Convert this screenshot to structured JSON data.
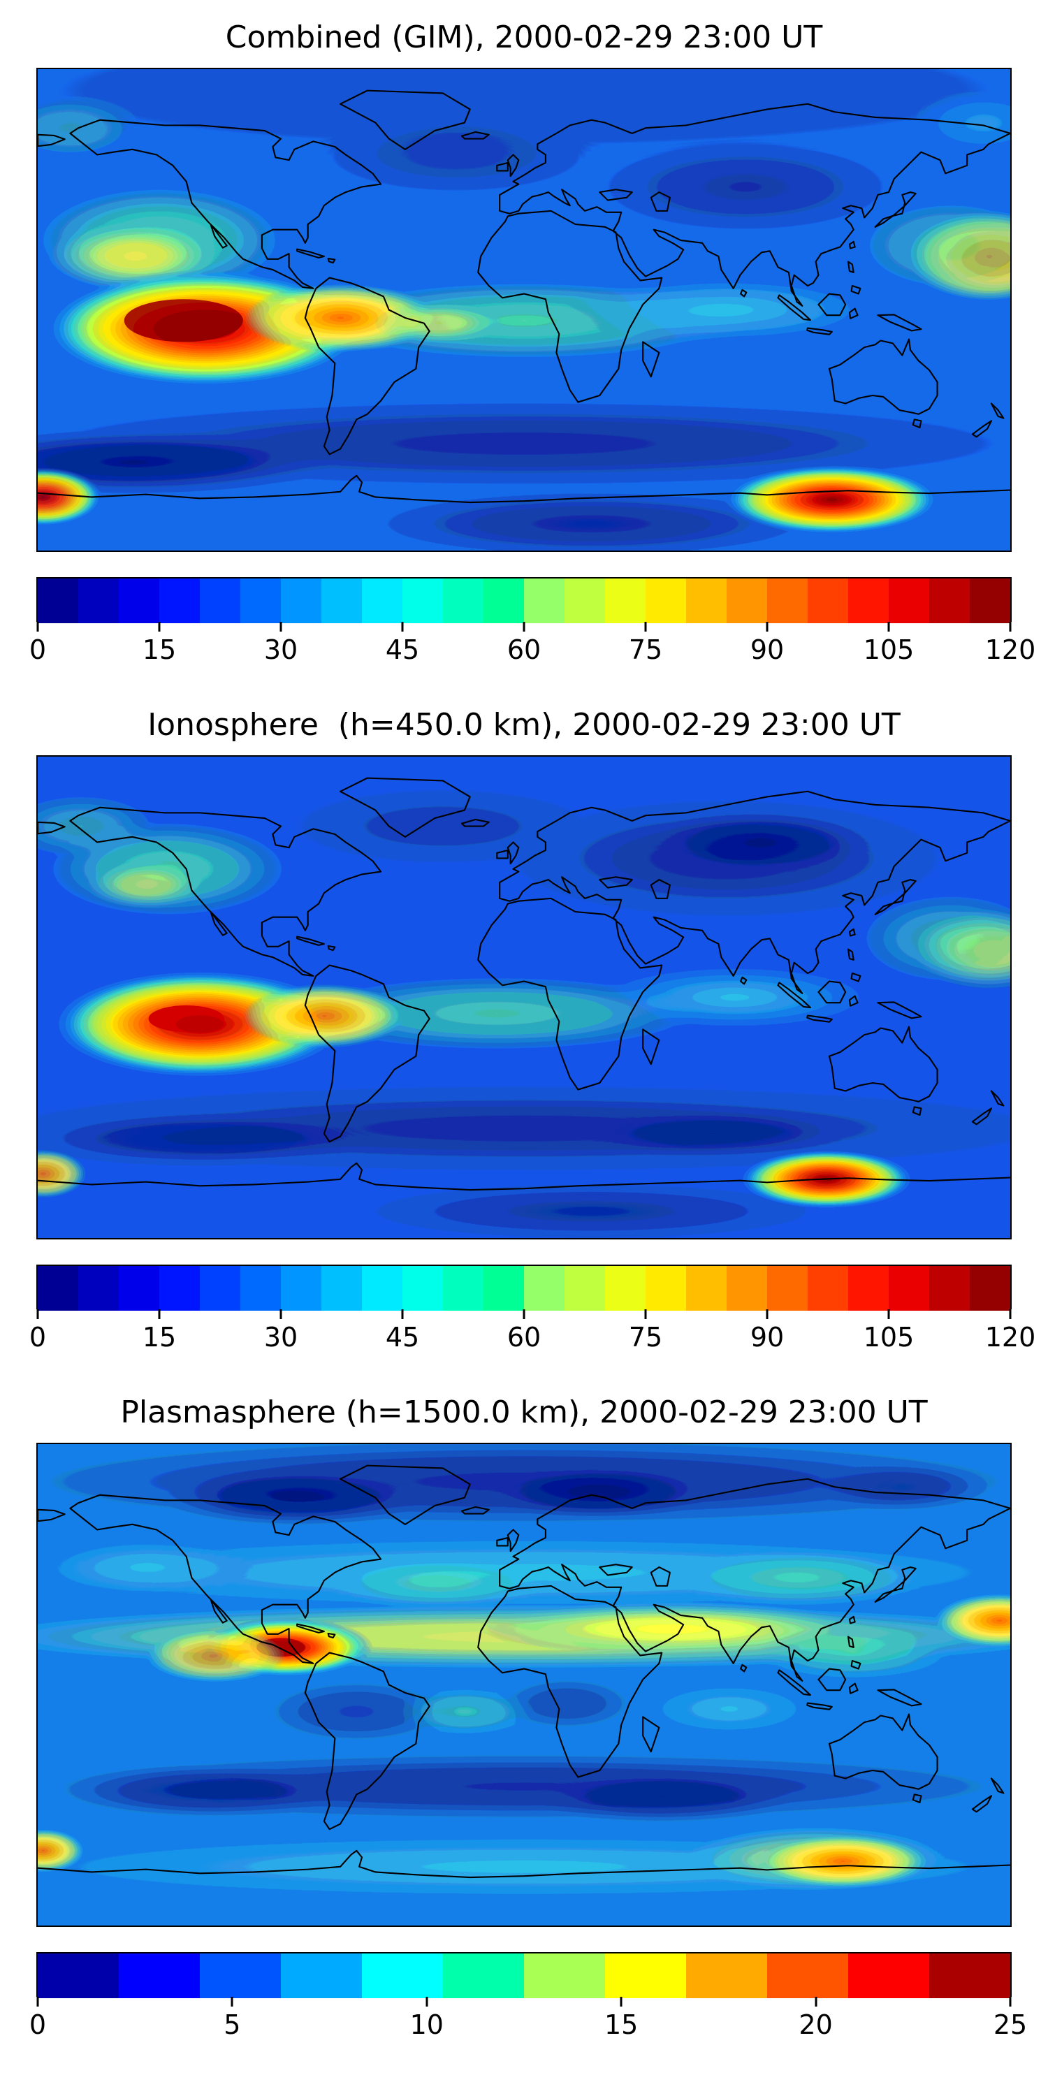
{
  "page": {
    "background": "#ffffff"
  },
  "panels": [
    {
      "id": "combined",
      "title": "Combined (GIM), 2000-02-29 23:00 UT",
      "colorbar": {
        "min": 0,
        "max": 120,
        "ticks": [
          0,
          15,
          30,
          45,
          60,
          75,
          90,
          105,
          120
        ],
        "segments": [
          "#000095",
          "#0000bf",
          "#0000ea",
          "#0015ff",
          "#0040ff",
          "#006aff",
          "#0095ff",
          "#00bfff",
          "#00eaff",
          "#00ffea",
          "#00ffbf",
          "#00ff95",
          "#95ff6a",
          "#bfff40",
          "#eaff15",
          "#ffea00",
          "#ffbf00",
          "#ff9500",
          "#ff6a00",
          "#ff4000",
          "#ff1500",
          "#ea0000",
          "#bf0000",
          "#950000"
        ]
      }
    },
    {
      "id": "ionosphere",
      "title": "Ionosphere  (h=450.0 km), 2000-02-29 23:00 UT",
      "colorbar": {
        "min": 0,
        "max": 120,
        "ticks": [
          0,
          15,
          30,
          45,
          60,
          75,
          90,
          105,
          120
        ],
        "segments": [
          "#000095",
          "#0000bf",
          "#0000ea",
          "#0015ff",
          "#0040ff",
          "#006aff",
          "#0095ff",
          "#00bfff",
          "#00eaff",
          "#00ffea",
          "#00ffbf",
          "#00ff95",
          "#95ff6a",
          "#bfff40",
          "#eaff15",
          "#ffea00",
          "#ffbf00",
          "#ff9500",
          "#ff6a00",
          "#ff4000",
          "#ff1500",
          "#ea0000",
          "#bf0000",
          "#950000"
        ]
      }
    },
    {
      "id": "plasmasphere",
      "title": "Plasmasphere (h=1500.0 km), 2000-02-29 23:00 UT",
      "colorbar": {
        "min": 0,
        "max": 25,
        "ticks": [
          0,
          5,
          10,
          15,
          20,
          25
        ],
        "segments": [
          "#0000aa",
          "#0000ff",
          "#0055ff",
          "#00aaff",
          "#00ffff",
          "#00ffaa",
          "#aaff55",
          "#ffff00",
          "#ffaa00",
          "#ff5500",
          "#ff0000",
          "#aa0000"
        ]
      }
    }
  ],
  "chart_data": [
    {
      "type": "heatmap",
      "subtype": "filled-contour-world-map",
      "title": "Combined (GIM), 2000-02-29 23:00 UT",
      "projection": "equirectangular",
      "x_range_lon": [
        -180,
        180
      ],
      "y_range_lat": [
        -90,
        90
      ],
      "colormap": "jet",
      "colorbar_orientation": "horizontal",
      "colorbar_range": [
        0,
        120
      ],
      "colorbar_ticks": [
        0,
        15,
        30,
        45,
        60,
        75,
        90,
        105,
        120
      ],
      "grid": false,
      "features": [
        {
          "name": "equatorial-anomaly-maximum-east-pacific",
          "lon": -120,
          "lat": -8,
          "value": 118
        },
        {
          "name": "south-america-crest",
          "lon": -70,
          "lat": -3,
          "value": 95
        },
        {
          "name": "north-pacific-green-enhancement",
          "lon": -140,
          "lat": 22,
          "value": 70
        },
        {
          "name": "west-pacific-edge-enhancement",
          "lon": 178,
          "lat": 20,
          "value": 80
        },
        {
          "name": "equatorial-africa-band",
          "lon": 0,
          "lat": -4,
          "value": 50
        },
        {
          "name": "southern-auroral-enhancement",
          "lon": 115,
          "lat": -72,
          "value": 110
        },
        {
          "name": "southwest-corner-enhancement",
          "lon": -178,
          "lat": -70,
          "value": 100
        },
        {
          "name": "central-asia-low",
          "lon": 82,
          "lat": 46,
          "value": 22
        },
        {
          "name": "southern-midlatitude-trough",
          "lon": -20,
          "lat": -55,
          "value": 10
        }
      ]
    },
    {
      "type": "heatmap",
      "subtype": "filled-contour-world-map",
      "title": "Ionosphere  (h=450.0 km), 2000-02-29 23:00 UT",
      "projection": "equirectangular",
      "x_range_lon": [
        -180,
        180
      ],
      "y_range_lat": [
        -90,
        90
      ],
      "colormap": "jet",
      "colorbar_orientation": "horizontal",
      "colorbar_range": [
        0,
        120
      ],
      "colorbar_ticks": [
        0,
        15,
        30,
        45,
        60,
        75,
        90,
        105,
        120
      ],
      "grid": false,
      "features": [
        {
          "name": "equatorial-anomaly-maximum-east-pacific",
          "lon": -120,
          "lat": -10,
          "value": 100
        },
        {
          "name": "south-america-crest",
          "lon": -74,
          "lat": -7,
          "value": 75
        },
        {
          "name": "northwest-america-green-patch",
          "lon": -132,
          "lat": 46,
          "value": 55
        },
        {
          "name": "west-pacific-edge-enhancement",
          "lon": 176,
          "lat": 18,
          "value": 65
        },
        {
          "name": "equatorial-atlantic-band",
          "lon": -10,
          "lat": -6,
          "value": 45
        },
        {
          "name": "southern-auroral-enhancement",
          "lon": 112,
          "lat": -68,
          "value": 95
        },
        {
          "name": "eurasia-deep-low",
          "lon": 85,
          "lat": 52,
          "value": 8
        },
        {
          "name": "southern-midlatitude-trough",
          "lon": -120,
          "lat": -52,
          "value": 10
        }
      ]
    },
    {
      "type": "heatmap",
      "subtype": "filled-contour-world-map",
      "title": "Plasmasphere (h=1500.0 km), 2000-02-29 23:00 UT",
      "projection": "equirectangular",
      "x_range_lon": [
        -180,
        180
      ],
      "y_range_lat": [
        -90,
        90
      ],
      "colormap": "jet",
      "colorbar_orientation": "horizontal",
      "colorbar_range": [
        0,
        25
      ],
      "colorbar_ticks": [
        0,
        5,
        10,
        15,
        20,
        25
      ],
      "grid": false,
      "features": [
        {
          "name": "caribbean-maximum",
          "lon": -88,
          "lat": 14,
          "value": 22
        },
        {
          "name": "africa-arabia-india-yellow-band",
          "lon": 55,
          "lat": 21,
          "value": 16
        },
        {
          "name": "west-pacific-edge-orange",
          "lon": 176,
          "lat": 24,
          "value": 20
        },
        {
          "name": "south-of-australia-enhancement",
          "lon": 118,
          "lat": -66,
          "value": 19
        },
        {
          "name": "southwest-corner-enhancement",
          "lon": -178,
          "lat": -62,
          "value": 17
        },
        {
          "name": "north-polar-trough-band",
          "lon": -85,
          "lat": 70,
          "value": 2
        },
        {
          "name": "scandinavia-russia-trough",
          "lon": 28,
          "lat": 72,
          "value": 2
        },
        {
          "name": "southern-midlatitude-trough-band",
          "lon": 50,
          "lat": -40,
          "value": 3
        },
        {
          "name": "midlatitude-cyan-background",
          "lon": -40,
          "lat": 40,
          "value": 9
        }
      ]
    }
  ]
}
